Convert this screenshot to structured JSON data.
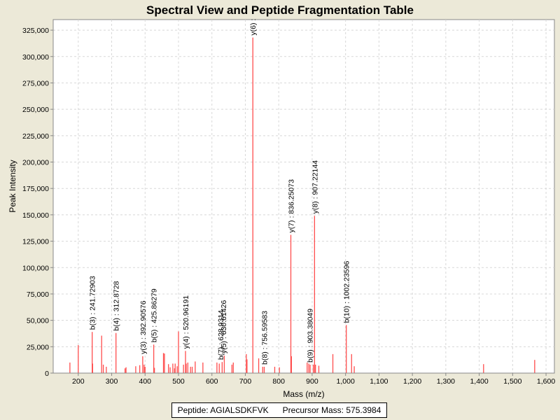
{
  "chart_data": {
    "type": "bar",
    "title": "Spectral View and Peptide Fragmentation Table",
    "xlabel": "Mass (m/z)",
    "ylabel": "Peak Intensity",
    "xlim": [
      125,
      1625
    ],
    "ylim": [
      0,
      335000
    ],
    "x_ticks": [
      {
        "value": 200,
        "label": "200"
      },
      {
        "value": 300,
        "label": "300"
      },
      {
        "value": 400,
        "label": "400"
      },
      {
        "value": 500,
        "label": "500"
      },
      {
        "value": 600,
        "label": "600"
      },
      {
        "value": 700,
        "label": "700"
      },
      {
        "value": 800,
        "label": "800"
      },
      {
        "value": 900,
        "label": "900"
      },
      {
        "value": 1000,
        "label": "1,000"
      },
      {
        "value": 1100,
        "label": "1,100"
      },
      {
        "value": 1200,
        "label": "1,200"
      },
      {
        "value": 1300,
        "label": "1,300"
      },
      {
        "value": 1400,
        "label": "1,400"
      },
      {
        "value": 1500,
        "label": "1,500"
      },
      {
        "value": 1600,
        "label": "1,600"
      }
    ],
    "y_ticks": [
      {
        "value": 0,
        "label": "0"
      },
      {
        "value": 25000,
        "label": "25,000"
      },
      {
        "value": 50000,
        "label": "50,000"
      },
      {
        "value": 75000,
        "label": "75,000"
      },
      {
        "value": 100000,
        "label": "100,000"
      },
      {
        "value": 125000,
        "label": "125,000"
      },
      {
        "value": 150000,
        "label": "150,000"
      },
      {
        "value": 175000,
        "label": "175,000"
      },
      {
        "value": 200000,
        "label": "200,000"
      },
      {
        "value": 225000,
        "label": "225,000"
      },
      {
        "value": 250000,
        "label": "250,000"
      },
      {
        "value": 275000,
        "label": "275,000"
      },
      {
        "value": 300000,
        "label": "300,000"
      },
      {
        "value": 325000,
        "label": "325,000"
      }
    ],
    "peaks": [
      [
        175,
        10000
      ],
      [
        200,
        26500
      ],
      [
        241.7,
        39000
      ],
      [
        243,
        9000
      ],
      [
        270,
        35500
      ],
      [
        275,
        8000
      ],
      [
        284,
        6000
      ],
      [
        312.9,
        38000
      ],
      [
        340,
        4500
      ],
      [
        343,
        5500
      ],
      [
        372,
        6500
      ],
      [
        384,
        7500
      ],
      [
        392.9,
        16000
      ],
      [
        397,
        8000
      ],
      [
        400,
        6000
      ],
      [
        425.9,
        27000
      ],
      [
        428,
        5000
      ],
      [
        455,
        19000
      ],
      [
        458,
        18500
      ],
      [
        470,
        8500
      ],
      [
        475,
        5500
      ],
      [
        483,
        9000
      ],
      [
        488,
        4500
      ],
      [
        490,
        9000
      ],
      [
        496,
        6500
      ],
      [
        500,
        39500
      ],
      [
        515,
        8000
      ],
      [
        520.96,
        21000
      ],
      [
        523,
        9000
      ],
      [
        528,
        10000
      ],
      [
        536,
        6000
      ],
      [
        541,
        6000
      ],
      [
        550,
        11000
      ],
      [
        573,
        10000
      ],
      [
        615,
        10000
      ],
      [
        622,
        9000
      ],
      [
        630.6,
        10500
      ],
      [
        637,
        16500
      ],
      [
        660,
        8000
      ],
      [
        664,
        10000
      ],
      [
        703,
        18000
      ],
      [
        705,
        13000
      ],
      [
        722.5,
        318000
      ],
      [
        740,
        14000
      ],
      [
        752,
        6000
      ],
      [
        756.6,
        6000
      ],
      [
        788,
        6000
      ],
      [
        802,
        5500
      ],
      [
        836.25,
        131000
      ],
      [
        838,
        16000
      ],
      [
        885,
        10000
      ],
      [
        890,
        9000
      ],
      [
        894,
        8000
      ],
      [
        903.4,
        8000
      ],
      [
        907.2,
        149000
      ],
      [
        910,
        8000
      ],
      [
        920,
        7000
      ],
      [
        962,
        18000
      ],
      [
        1002.2,
        45500
      ],
      [
        1018,
        18000
      ],
      [
        1026,
        6500
      ],
      [
        1413,
        8500
      ],
      [
        1566,
        12500
      ]
    ],
    "annotations": [
      {
        "x": 241.7,
        "y": 39000,
        "text": "b(3) : 241.72903"
      },
      {
        "x": 312.9,
        "y": 38000,
        "text": "b(4) : 312.8728"
      },
      {
        "x": 392.9,
        "y": 16000,
        "text": "y(3) : 392.90576"
      },
      {
        "x": 425.9,
        "y": 27000,
        "text": "b(5) : 425.86279"
      },
      {
        "x": 520.96,
        "y": 21000,
        "text": "y(4) : 520.96191"
      },
      {
        "x": 625.5,
        "y": 10500,
        "text": "b(7) : 628.9314"
      },
      {
        "x": 634,
        "y": 16500,
        "text": "y(5) : 630.61426"
      },
      {
        "x": 722.5,
        "y": 318000,
        "text": "y(6) :"
      },
      {
        "x": 756.6,
        "y": 6000,
        "text": "b(8) : 756.59583"
      },
      {
        "x": 836.25,
        "y": 131000,
        "text": "y(7) : 836.25073"
      },
      {
        "x": 893,
        "y": 8000,
        "text": "b(9) : 903.38049"
      },
      {
        "x": 907.2,
        "y": 149000,
        "text": "y(8) : 907.22144"
      },
      {
        "x": 1002.2,
        "y": 45500,
        "text": "b(10) : 1002.23596"
      }
    ],
    "colors": {
      "peak": "#FF4D4D",
      "grid": "#D8D8D8",
      "plot_bg": "#FFFFFF",
      "axis": "#888888"
    }
  },
  "legend": {
    "peptide": "Peptide: AGIALSDKFVK",
    "precursor": "Precursor Mass: 575.3984"
  }
}
